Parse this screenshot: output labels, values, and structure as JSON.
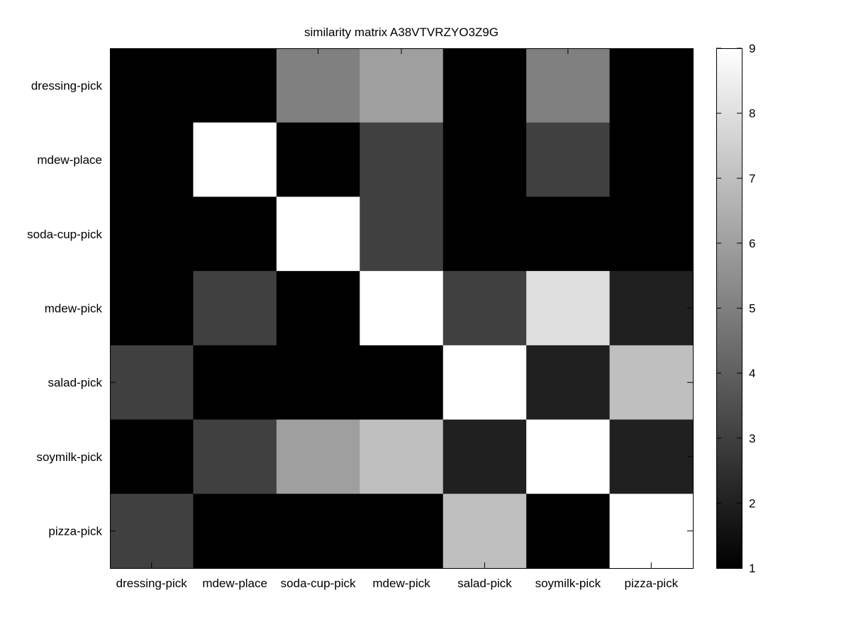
{
  "chart_data": {
    "type": "heatmap",
    "title": "similarity matrix A38VTVRZYO3Z9G",
    "xlabel": "",
    "ylabel": "",
    "row_labels": [
      "dressing-pick",
      "mdew-place",
      "soda-cup-pick",
      "mdew-pick",
      "salad-pick",
      "soymilk-pick",
      "pizza-pick"
    ],
    "col_labels": [
      "dressing-pick",
      "mdew-place",
      "soda-cup-pick",
      "mdew-pick",
      "salad-pick",
      "soymilk-pick",
      "pizza-pick"
    ],
    "values": [
      [
        1,
        1,
        5,
        6,
        1,
        5,
        1
      ],
      [
        1,
        9,
        1,
        3,
        1,
        3,
        1
      ],
      [
        1,
        1,
        9,
        3,
        1,
        1,
        1
      ],
      [
        1,
        3,
        1,
        9,
        3,
        8,
        2
      ],
      [
        3,
        1,
        1,
        1,
        9,
        2,
        7
      ],
      [
        1,
        3,
        6,
        7,
        2,
        9,
        2
      ],
      [
        3,
        1,
        1,
        1,
        7,
        1,
        9
      ]
    ],
    "colormap": "gray",
    "colorbar": {
      "range": [
        1,
        9
      ],
      "ticks": [
        "1",
        "2",
        "3",
        "4",
        "5",
        "6",
        "7",
        "8",
        "9"
      ]
    },
    "grid": false
  }
}
